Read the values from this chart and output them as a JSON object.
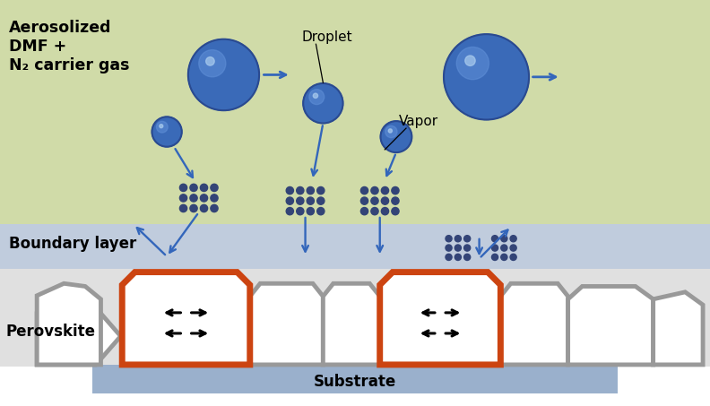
{
  "bg_green": "#d0dba8",
  "bg_blue_layer": "#c0ccdd",
  "bg_substrate": "#9ab0cc",
  "arrow_color": "#3366bb",
  "orange_color": "#cc4411",
  "gray_color": "#999999",
  "blue_dark": "#2a4a90",
  "blue_mid": "#3a6ab8",
  "blue_light": "#6090d8",
  "dot_color": "#334477",
  "label_aerosolized": "Aerosolized\nDMF +\nN₂ carrier gas",
  "label_droplet": "Droplet",
  "label_vapor": "Vapor",
  "label_boundary": "Boundary layer",
  "label_perovskite": "Perovskite",
  "label_substrate": "Substrate",
  "figsize": [
    7.92,
    4.53
  ],
  "dpi": 100
}
